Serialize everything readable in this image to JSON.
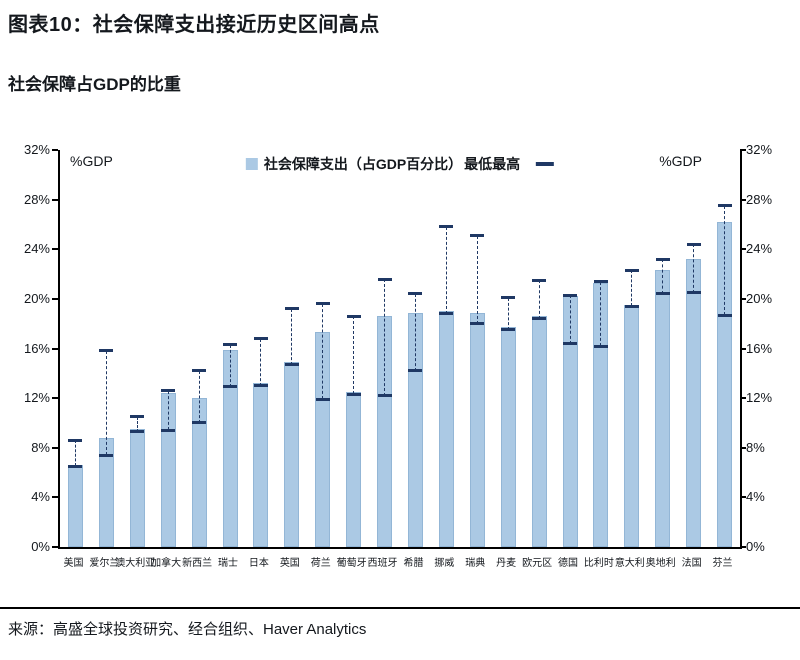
{
  "header": {
    "title": "图表10：社会保障支出接近历史区间高点",
    "subtitle": "社会保障占GDP的比重"
  },
  "legend": {
    "bar_label": "社会保障支出（占GDP百分比）",
    "range_label": "最低最高"
  },
  "footer": {
    "source": "来源：高盛全球投资研究、经合组织、Haver Analytics"
  },
  "colors": {
    "bar_fill": "#abc9e4",
    "bar_border": "#93b6d6",
    "range_marker": "#1f3864",
    "axis": "#000000",
    "text": "#14181d"
  },
  "chart_data": {
    "type": "bar",
    "title": "社会保障占GDP的比重",
    "xlabel": "",
    "ylabel": "%GDP",
    "ylim": [
      0,
      32
    ],
    "yticks": [
      0,
      4,
      8,
      12,
      16,
      20,
      24,
      28,
      32
    ],
    "ytick_suffix": "%",
    "grid": false,
    "legend_position": "top-center",
    "categories": [
      "美国",
      "爱尔兰",
      "澳大利亚",
      "加拿大",
      "新西兰",
      "瑞士",
      "日本",
      "英国",
      "荷兰",
      "葡萄牙",
      "西班牙",
      "希腊",
      "挪威",
      "瑞典",
      "丹麦",
      "欧元区",
      "德国",
      "比利时",
      "意大利",
      "奥地利",
      "法国",
      "芬兰"
    ],
    "series": [
      {
        "name": "社会保障支出（占GDP百分比）",
        "type": "bar",
        "values": [
          6.6,
          8.8,
          9.5,
          12.4,
          12.0,
          15.9,
          13.2,
          14.9,
          17.3,
          12.5,
          18.6,
          18.9,
          19.0,
          18.9,
          17.7,
          18.6,
          20.2,
          21.3,
          19.5,
          22.3,
          23.2,
          26.2
        ]
      },
      {
        "name": "最低",
        "type": "range-min-marker",
        "values": [
          6.5,
          7.4,
          9.3,
          9.4,
          10.0,
          12.9,
          13.0,
          14.7,
          11.9,
          12.3,
          12.2,
          14.2,
          18.8,
          18.0,
          17.5,
          18.4,
          16.4,
          16.2,
          19.4,
          20.4,
          20.5,
          18.7
        ]
      },
      {
        "name": "最高",
        "type": "range-max-marker",
        "values": [
          8.6,
          15.8,
          10.5,
          12.6,
          14.2,
          16.3,
          16.8,
          19.2,
          19.6,
          18.6,
          21.6,
          20.4,
          25.8,
          25.1,
          20.1,
          21.5,
          20.3,
          21.4,
          22.3,
          23.2,
          24.4,
          27.5
        ]
      }
    ]
  }
}
